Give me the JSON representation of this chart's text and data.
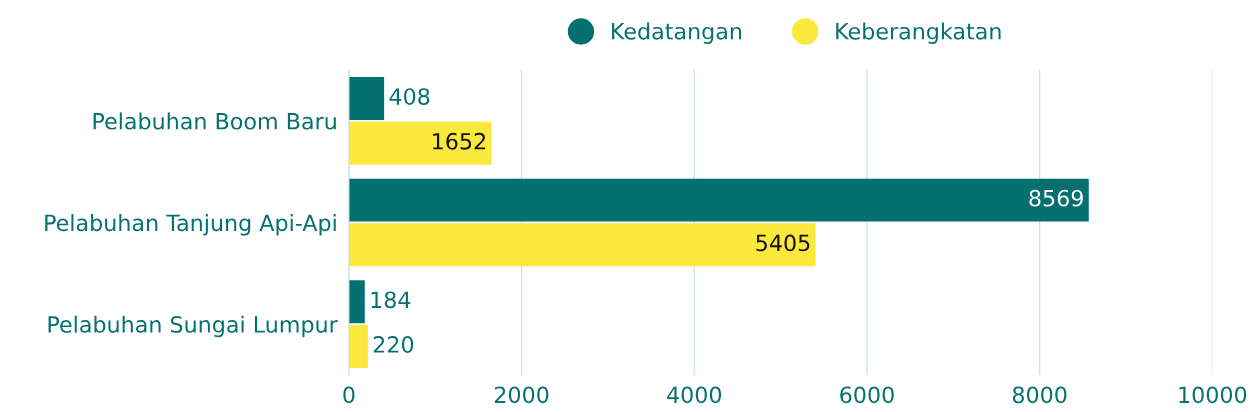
{
  "chart_data": {
    "type": "bar",
    "orientation": "horizontal",
    "categories": [
      "Pelabuhan Boom Baru",
      "Pelabuhan Tanjung Api-Api",
      "Pelabuhan Sungai Lumpur"
    ],
    "series": [
      {
        "name": "Kedatangan",
        "color": "#057070",
        "values": [
          408,
          8569,
          184
        ]
      },
      {
        "name": "Keberangkatan",
        "color": "#fae83c",
        "values": [
          1652,
          5405,
          220
        ]
      }
    ],
    "xlim": [
      0,
      10000
    ],
    "xticks": [
      0,
      2000,
      4000,
      6000,
      8000,
      10000
    ],
    "grid": "x",
    "legend": "top",
    "data_labels": true
  }
}
